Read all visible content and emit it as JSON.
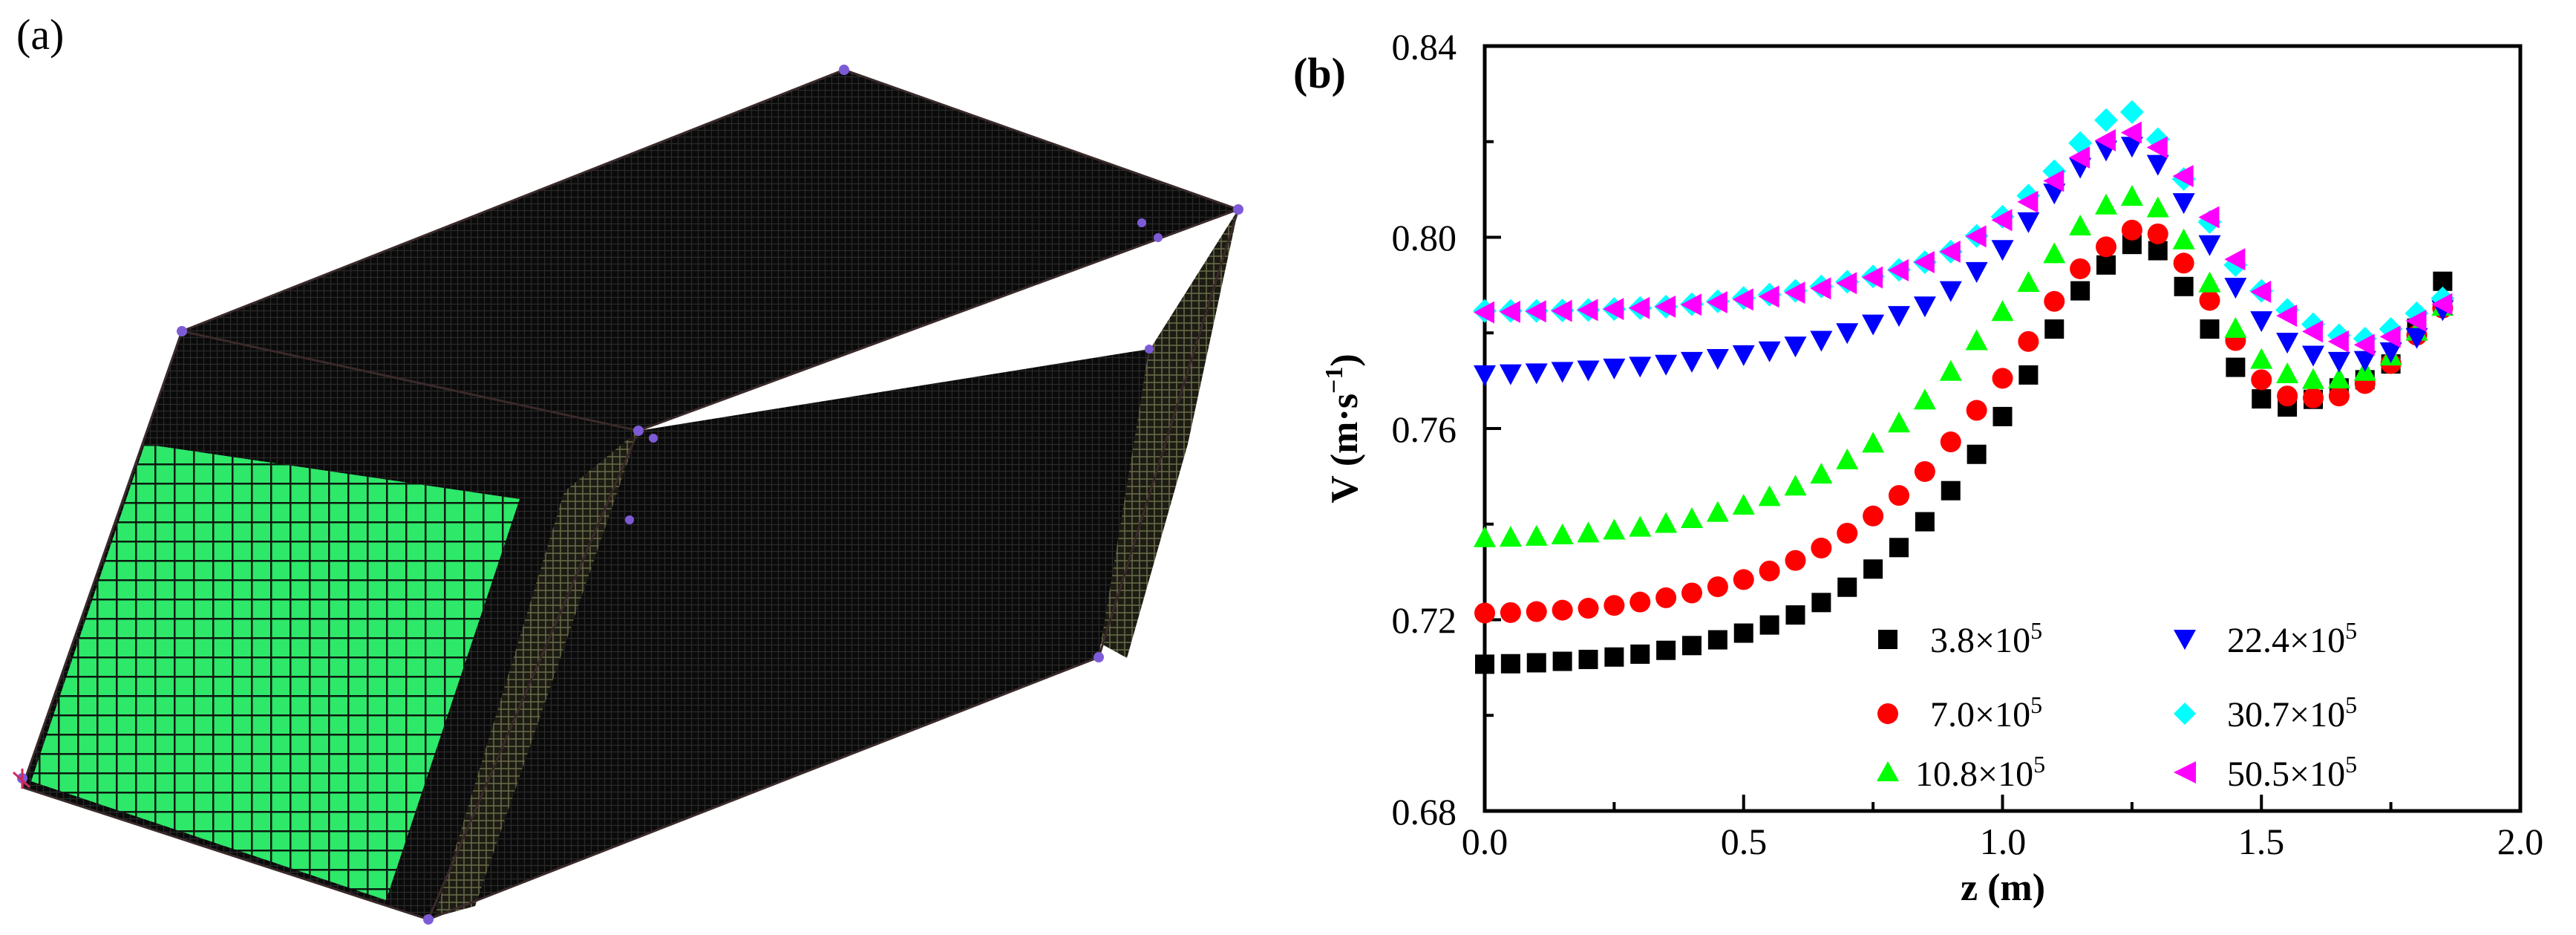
{
  "panel_a": {
    "label": "(a)",
    "description_colors": {
      "mesh": "#0c0c0c",
      "inlet": "#2ee86a",
      "side": "#6b6b4a",
      "node": "#7e5bd6"
    }
  },
  "panel_b": {
    "label": "(b)"
  },
  "chart_data": {
    "type": "scatter",
    "title": "",
    "xlabel": "z (m)",
    "ylabel_main": "V (m·s",
    "ylabel_sup": "−1",
    "ylabel_end": ")",
    "xlim": [
      0.0,
      2.0
    ],
    "ylim": [
      0.68,
      0.84
    ],
    "xticks": [
      "0.0",
      "0.5",
      "1.0",
      "1.5",
      "2.0"
    ],
    "yticks": [
      "0.68",
      "0.72",
      "0.76",
      "0.80",
      "0.84"
    ],
    "legend_position": "bottom-right",
    "x": [
      0.0,
      0.05,
      0.1,
      0.15,
      0.2,
      0.25,
      0.3,
      0.35,
      0.4,
      0.45,
      0.5,
      0.55,
      0.6,
      0.65,
      0.7,
      0.75,
      0.8,
      0.85,
      0.9,
      0.95,
      1.0,
      1.05,
      1.1,
      1.15,
      1.2,
      1.25,
      1.3,
      1.35,
      1.4,
      1.45,
      1.5,
      1.55,
      1.6,
      1.65,
      1.7,
      1.75,
      1.8,
      1.85
    ],
    "series": [
      {
        "name": "3.8×10",
        "exp": "5",
        "marker": "square",
        "color": "#000000",
        "values": [
          0.7107,
          0.7108,
          0.711,
          0.7113,
          0.7117,
          0.7122,
          0.7128,
          0.7136,
          0.7146,
          0.7158,
          0.7172,
          0.7189,
          0.721,
          0.7236,
          0.7268,
          0.7306,
          0.7351,
          0.7405,
          0.747,
          0.7546,
          0.7625,
          0.7712,
          0.7808,
          0.7888,
          0.7942,
          0.7985,
          0.7972,
          0.7897,
          0.7808,
          0.7728,
          0.7662,
          0.7645,
          0.7661,
          0.7685,
          0.7702,
          0.7735,
          0.781,
          0.7908
        ]
      },
      {
        "name": "7.0×10",
        "exp": "5",
        "marker": "circle",
        "color": "#ff0000",
        "values": [
          0.7214,
          0.7215,
          0.7217,
          0.722,
          0.7224,
          0.723,
          0.7237,
          0.7246,
          0.7256,
          0.7269,
          0.7284,
          0.7302,
          0.7324,
          0.735,
          0.7381,
          0.7417,
          0.746,
          0.751,
          0.7572,
          0.7638,
          0.7705,
          0.7782,
          0.7866,
          0.7934,
          0.798,
          0.8015,
          0.8007,
          0.7946,
          0.7868,
          0.7784,
          0.7702,
          0.7668,
          0.7664,
          0.7668,
          0.7694,
          0.7736,
          0.7795,
          0.7852
        ]
      },
      {
        "name": "10.8×10",
        "exp": "5",
        "marker": "triangle-up",
        "color": "#00ff00",
        "values": [
          0.7372,
          0.7373,
          0.7375,
          0.7378,
          0.7382,
          0.7388,
          0.7394,
          0.7402,
          0.7412,
          0.7425,
          0.744,
          0.7458,
          0.748,
          0.7505,
          0.7535,
          0.757,
          0.7612,
          0.766,
          0.772,
          0.7784,
          0.7845,
          0.7906,
          0.7966,
          0.8024,
          0.8068,
          0.8086,
          0.8062,
          0.7995,
          0.7905,
          0.781,
          0.7745,
          0.7715,
          0.7703,
          0.7704,
          0.772,
          0.7752,
          0.7804,
          0.7856
        ]
      },
      {
        "name": "22.4×10",
        "exp": "5",
        "marker": "triangle-down",
        "color": "#0000ff",
        "values": [
          0.7712,
          0.7714,
          0.7716,
          0.7719,
          0.7722,
          0.7726,
          0.773,
          0.7734,
          0.774,
          0.7746,
          0.7754,
          0.7762,
          0.7772,
          0.7784,
          0.78,
          0.7818,
          0.7836,
          0.7856,
          0.7888,
          0.7928,
          0.7974,
          0.8032,
          0.8092,
          0.8146,
          0.8182,
          0.819,
          0.8152,
          0.8072,
          0.7984,
          0.7895,
          0.7825,
          0.778,
          0.7753,
          0.774,
          0.7742,
          0.776,
          0.779,
          0.7848
        ]
      },
      {
        "name": "30.7×10",
        "exp": "5",
        "marker": "diamond",
        "color": "#00ffff",
        "values": [
          0.7846,
          0.7846,
          0.7846,
          0.7847,
          0.7848,
          0.785,
          0.7852,
          0.7855,
          0.786,
          0.7866,
          0.7873,
          0.788,
          0.7888,
          0.7897,
          0.7907,
          0.7918,
          0.7932,
          0.7948,
          0.797,
          0.8003,
          0.8043,
          0.8087,
          0.8138,
          0.8197,
          0.8245,
          0.8262,
          0.8205,
          0.8122,
          0.8032,
          0.7942,
          0.7888,
          0.7848,
          0.7818,
          0.7795,
          0.7788,
          0.7808,
          0.7841,
          0.7872
        ]
      },
      {
        "name": "50.5×10",
        "exp": "5",
        "marker": "triangle-left",
        "color": "#ff00ff",
        "values": [
          0.7843,
          0.7844,
          0.7845,
          0.7846,
          0.7848,
          0.785,
          0.7852,
          0.7855,
          0.7859,
          0.7864,
          0.787,
          0.7876,
          0.7884,
          0.7893,
          0.7904,
          0.7916,
          0.7931,
          0.7948,
          0.797,
          0.8002,
          0.8036,
          0.8074,
          0.8118,
          0.8167,
          0.8203,
          0.8219,
          0.8188,
          0.8128,
          0.8042,
          0.7954,
          0.7886,
          0.7836,
          0.7803,
          0.7782,
          0.7775,
          0.7792,
          0.7825,
          0.786
        ]
      }
    ]
  }
}
